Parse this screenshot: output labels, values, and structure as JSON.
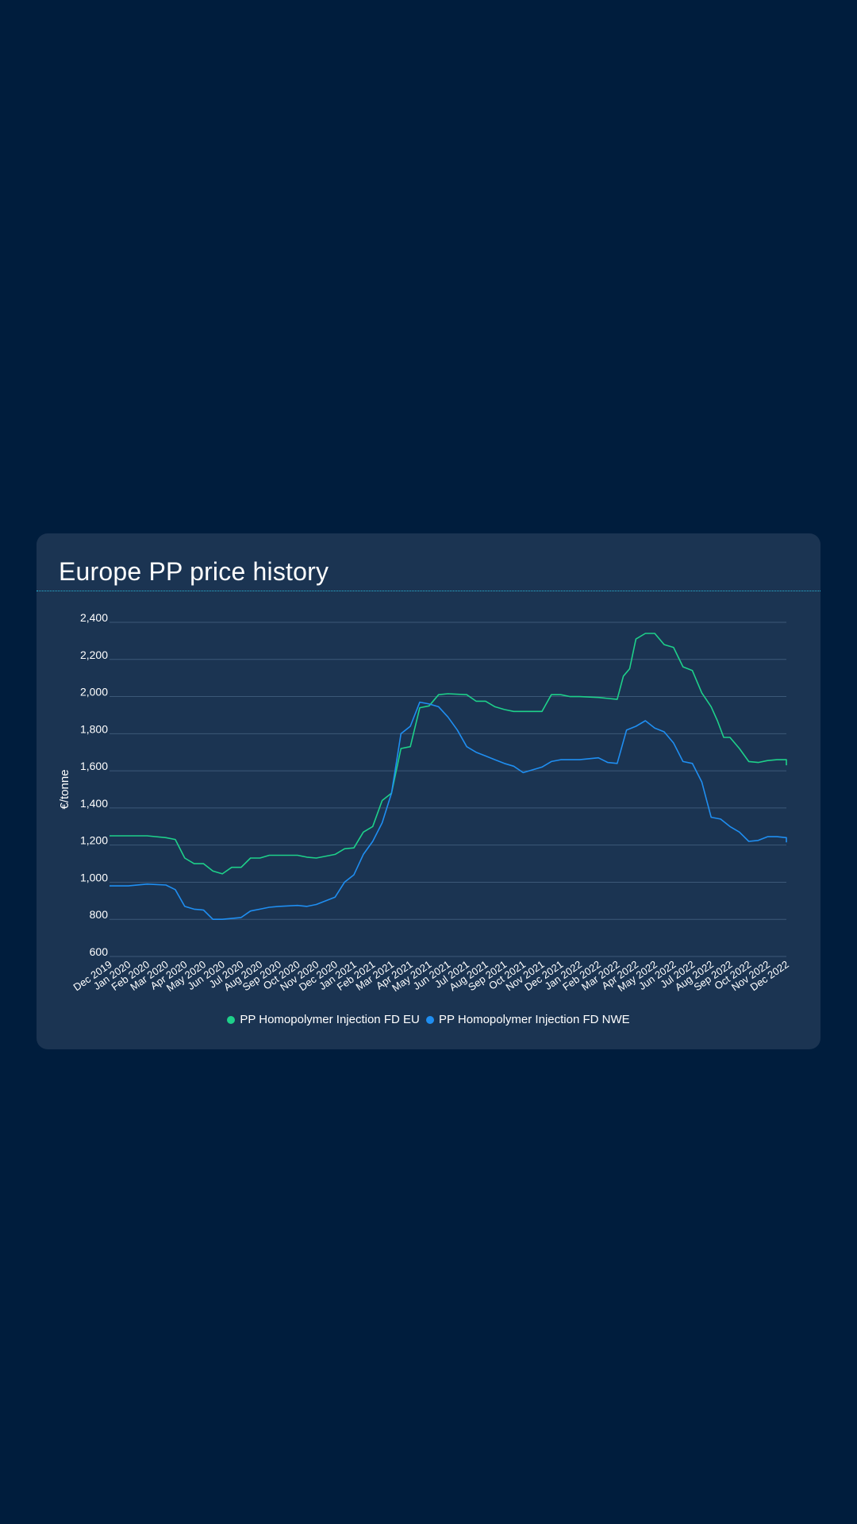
{
  "page": {
    "background": "#001d3d"
  },
  "card": {
    "title": "Europe PP price history"
  },
  "chart_data": {
    "type": "line",
    "title": "Europe PP price history",
    "ylabel": "€/tonne",
    "xlabel": "",
    "ylim": [
      600,
      2400
    ],
    "yticks": [
      600,
      800,
      1000,
      1200,
      1400,
      1600,
      1800,
      2000,
      2200,
      2400
    ],
    "ytick_labels": [
      "600",
      "800",
      "1,000",
      "1,200",
      "1,400",
      "1,600",
      "1,800",
      "2,000",
      "2,200",
      "2,400"
    ],
    "grid": true,
    "legend_position": "bottom-center",
    "x": [
      "Dec 2019",
      "Jan 2020",
      "Feb 2020",
      "Mar 2020",
      "Apr 2020",
      "May 2020",
      "Jun 2020",
      "Jul 2020",
      "Aug 2020",
      "Sep 2020",
      "Oct 2020",
      "Nov 2020",
      "Dec 2020",
      "Jan 2021",
      "Feb 2021",
      "Mar 2021",
      "Apr 2021",
      "May 2021",
      "Jun 2021",
      "Jul 2021",
      "Aug 2021",
      "Sep 2021",
      "Oct 2021",
      "Nov 2021",
      "Dec 2021",
      "Jan 2022",
      "Feb 2022",
      "Mar 2022",
      "Apr 2022",
      "May 2022",
      "Jun 2022",
      "Jul 2022",
      "Aug 2022",
      "Sep 2022",
      "Oct 2022",
      "Nov 2022",
      "Dec 2022"
    ],
    "series": [
      {
        "name": "PP Homopolymer Injection FD EU",
        "color": "#1ed08a",
        "points": [
          [
            "Dec 2019",
            1250
          ],
          [
            "Jan 2020",
            1250
          ],
          [
            "Feb 2020",
            1250
          ],
          [
            "Mar 2020",
            1240
          ],
          [
            "Mar 2020",
            1230
          ],
          [
            "Apr 2020",
            1130
          ],
          [
            "Apr 2020",
            1100
          ],
          [
            "May 2020",
            1100
          ],
          [
            "May 2020",
            1060
          ],
          [
            "Jun 2020",
            1045
          ],
          [
            "Jun 2020",
            1080
          ],
          [
            "Jul 2020",
            1080
          ],
          [
            "Jul 2020",
            1130
          ],
          [
            "Aug 2020",
            1130
          ],
          [
            "Aug 2020",
            1145
          ],
          [
            "Sep 2020",
            1145
          ],
          [
            "Oct 2020",
            1145
          ],
          [
            "Oct 2020",
            1135
          ],
          [
            "Nov 2020",
            1130
          ],
          [
            "Dec 2020",
            1150
          ],
          [
            "Dec 2020",
            1180
          ],
          [
            "Jan 2021",
            1185
          ],
          [
            "Jan 2021",
            1270
          ],
          [
            "Feb 2021",
            1300
          ],
          [
            "Feb 2021",
            1440
          ],
          [
            "Mar 2021",
            1480
          ],
          [
            "Mar 2021",
            1720
          ],
          [
            "Apr 2021",
            1730
          ],
          [
            "Apr 2021",
            1940
          ],
          [
            "May 2021",
            1950
          ],
          [
            "May 2021",
            2010
          ],
          [
            "Jun 2021",
            2015
          ],
          [
            "Jul 2021",
            2010
          ],
          [
            "Jul 2021",
            1975
          ],
          [
            "Aug 2021",
            1975
          ],
          [
            "Aug 2021",
            1945
          ],
          [
            "Sep 2021",
            1930
          ],
          [
            "Sep 2021",
            1920
          ],
          [
            "Oct 2021",
            1920
          ],
          [
            "Nov 2021",
            1920
          ],
          [
            "Nov 2021",
            2010
          ],
          [
            "Dec 2021",
            2010
          ],
          [
            "Dec 2021",
            2000
          ],
          [
            "Jan 2022",
            2000
          ],
          [
            "Feb 2022",
            1995
          ],
          [
            "Mar 2022",
            1985
          ],
          [
            "Mar 2022",
            2110
          ],
          [
            "Mar 2022",
            2150
          ],
          [
            "Apr 2022",
            2310
          ],
          [
            "Apr 2022",
            2340
          ],
          [
            "May 2022",
            2340
          ],
          [
            "May 2022",
            2280
          ],
          [
            "Jun 2022",
            2265
          ],
          [
            "Jun 2022",
            2160
          ],
          [
            "Jul 2022",
            2140
          ],
          [
            "Jul 2022",
            2020
          ],
          [
            "Aug 2022",
            1945
          ],
          [
            "Aug 2022",
            1870
          ],
          [
            "Aug 2022",
            1780
          ],
          [
            "Sep 2022",
            1780
          ],
          [
            "Sep 2022",
            1720
          ],
          [
            "Oct 2022",
            1650
          ],
          [
            "Oct 2022",
            1645
          ],
          [
            "Nov 2022",
            1655
          ],
          [
            "Nov 2022",
            1660
          ],
          [
            "Dec 2022",
            1660
          ],
          [
            "Dec 2022",
            1630
          ]
        ]
      },
      {
        "name": "PP Homopolymer Injection FD NWE",
        "color": "#1f8ef1",
        "points": [
          [
            "Dec 2019",
            980
          ],
          [
            "Jan 2020",
            980
          ],
          [
            "Feb 2020",
            990
          ],
          [
            "Mar 2020",
            985
          ],
          [
            "Mar 2020",
            960
          ],
          [
            "Apr 2020",
            870
          ],
          [
            "Apr 2020",
            855
          ],
          [
            "May 2020",
            850
          ],
          [
            "May 2020",
            800
          ],
          [
            "Jun 2020",
            800
          ],
          [
            "Jun 2020",
            805
          ],
          [
            "Jul 2020",
            810
          ],
          [
            "Jul 2020",
            845
          ],
          [
            "Aug 2020",
            855
          ],
          [
            "Aug 2020",
            865
          ],
          [
            "Sep 2020",
            870
          ],
          [
            "Oct 2020",
            875
          ],
          [
            "Oct 2020",
            870
          ],
          [
            "Nov 2020",
            880
          ],
          [
            "Dec 2020",
            920
          ],
          [
            "Dec 2020",
            1000
          ],
          [
            "Jan 2021",
            1040
          ],
          [
            "Jan 2021",
            1150
          ],
          [
            "Feb 2021",
            1220
          ],
          [
            "Feb 2021",
            1320
          ],
          [
            "Mar 2021",
            1480
          ],
          [
            "Mar 2021",
            1800
          ],
          [
            "Apr 2021",
            1840
          ],
          [
            "Apr 2021",
            1970
          ],
          [
            "May 2021",
            1960
          ],
          [
            "May 2021",
            1945
          ],
          [
            "Jun 2021",
            1890
          ],
          [
            "Jun 2021",
            1820
          ],
          [
            "Jul 2021",
            1730
          ],
          [
            "Jul 2021",
            1700
          ],
          [
            "Aug 2021",
            1680
          ],
          [
            "Aug 2021",
            1660
          ],
          [
            "Sep 2021",
            1640
          ],
          [
            "Sep 2021",
            1625
          ],
          [
            "Oct 2021",
            1590
          ],
          [
            "Nov 2021",
            1620
          ],
          [
            "Nov 2021",
            1650
          ],
          [
            "Dec 2021",
            1660
          ],
          [
            "Jan 2022",
            1660
          ],
          [
            "Feb 2022",
            1670
          ],
          [
            "Feb 2022",
            1645
          ],
          [
            "Mar 2022",
            1640
          ],
          [
            "Mar 2022",
            1820
          ],
          [
            "Apr 2022",
            1840
          ],
          [
            "Apr 2022",
            1870
          ],
          [
            "May 2022",
            1830
          ],
          [
            "May 2022",
            1810
          ],
          [
            "Jun 2022",
            1750
          ],
          [
            "Jun 2022",
            1650
          ],
          [
            "Jul 2022",
            1640
          ],
          [
            "Jul 2022",
            1540
          ],
          [
            "Aug 2022",
            1350
          ],
          [
            "Aug 2022",
            1340
          ],
          [
            "Sep 2022",
            1300
          ],
          [
            "Sep 2022",
            1270
          ],
          [
            "Oct 2022",
            1220
          ],
          [
            "Oct 2022",
            1225
          ],
          [
            "Nov 2022",
            1245
          ],
          [
            "Nov 2022",
            1245
          ],
          [
            "Dec 2022",
            1240
          ],
          [
            "Dec 2022",
            1215
          ]
        ]
      }
    ]
  }
}
